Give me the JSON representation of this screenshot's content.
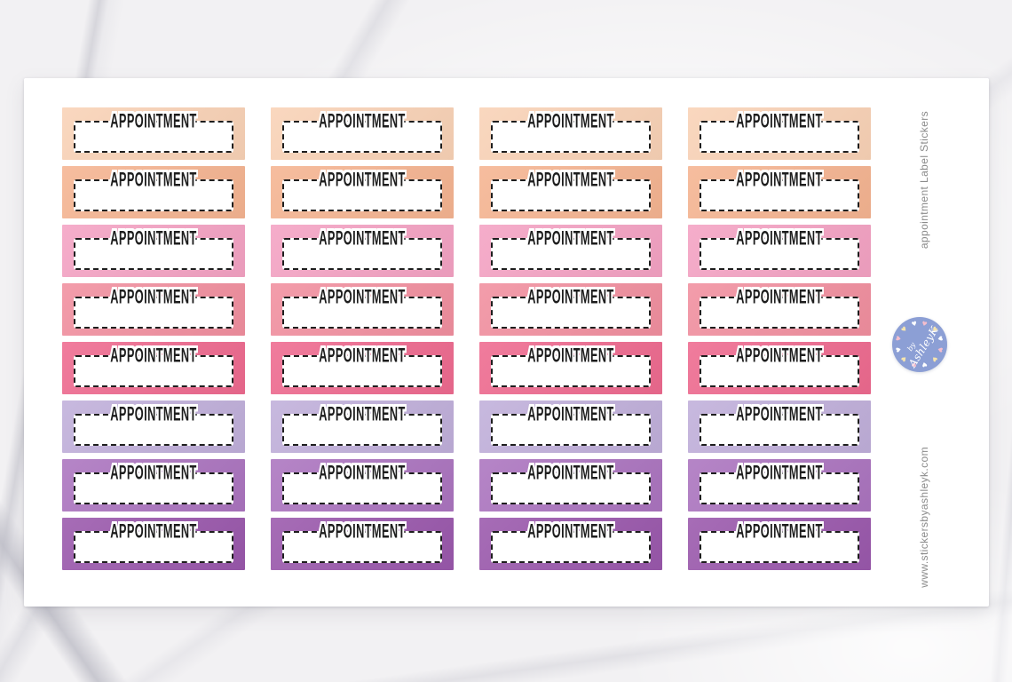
{
  "product": {
    "sticker_label": "APPOINTMENT",
    "columns": 4,
    "rows": [
      {
        "name": "peach-light",
        "color": "#F9D2B6"
      },
      {
        "name": "peach",
        "color": "#F5B491"
      },
      {
        "name": "pink-light",
        "color": "#F4A2C3"
      },
      {
        "name": "pink",
        "color": "#F18F9F"
      },
      {
        "name": "raspberry",
        "color": "#EE6A8F"
      },
      {
        "name": "lavender",
        "color": "#C0AFDA"
      },
      {
        "name": "purple",
        "color": "#AB74BF"
      },
      {
        "name": "purple-dark",
        "color": "#9A58AC"
      }
    ]
  },
  "side": {
    "product_title": "appointment Label Stickers",
    "website": "www.stickersbyashleyk.com"
  },
  "logo": {
    "prefix": "by",
    "name": "AshleyK",
    "circle_color": "#8C9FD5",
    "heart_colors": [
      "#F5BECD",
      "#F6E5AE",
      "#FFFFFF"
    ]
  },
  "colors": {
    "sheet": "#FFFFFF",
    "dash": "#1E1E1E",
    "label_text": "#1D1D1D",
    "side_text": "#8B8B8B"
  }
}
